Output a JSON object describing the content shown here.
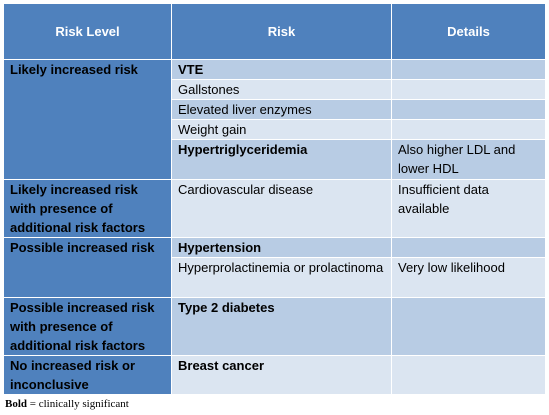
{
  "headers": {
    "level": "Risk Level",
    "risk": "Risk",
    "details": "Details"
  },
  "groups": {
    "likely": {
      "level": "Likely increased risk",
      "rows": [
        "VTE",
        "Gallstones",
        "Elevated liver enzymes",
        "Weight gain",
        "Hypertriglyceridemia"
      ],
      "detail": "Also higher LDL and lower HDL"
    },
    "likely_factors": {
      "level": "Likely increased risk with presence of additional risk factors",
      "risk": "Cardiovascular disease",
      "detail": "Insufficient data available"
    },
    "possible": {
      "level": "Possible increased risk",
      "rows": [
        "Hypertension",
        "Hyperprolactinemia or prolactinoma"
      ],
      "detail": "Very low likelihood"
    },
    "possible_factors": {
      "level": "Possible increased risk with presence of additional risk factors",
      "risk": "Type 2 diabetes"
    },
    "none": {
      "level": "No increased risk or inconclusive",
      "risk": "Breast cancer"
    }
  },
  "footnote": {
    "bold_label": "Bold",
    "text": " = clinically significant"
  }
}
